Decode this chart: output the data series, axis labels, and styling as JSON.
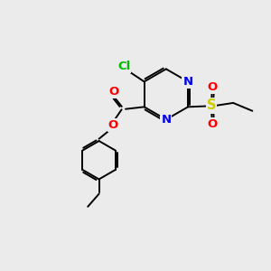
{
  "background_color": "#ebebeb",
  "bond_color": "#000000",
  "atom_colors": {
    "Cl": "#00bb00",
    "N": "#0000ee",
    "O": "#ff0000",
    "S": "#cccc00",
    "C": "#000000"
  },
  "figsize": [
    3.0,
    3.0
  ],
  "dpi": 100,
  "xlim": [
    0,
    10
  ],
  "ylim": [
    0,
    10
  ]
}
